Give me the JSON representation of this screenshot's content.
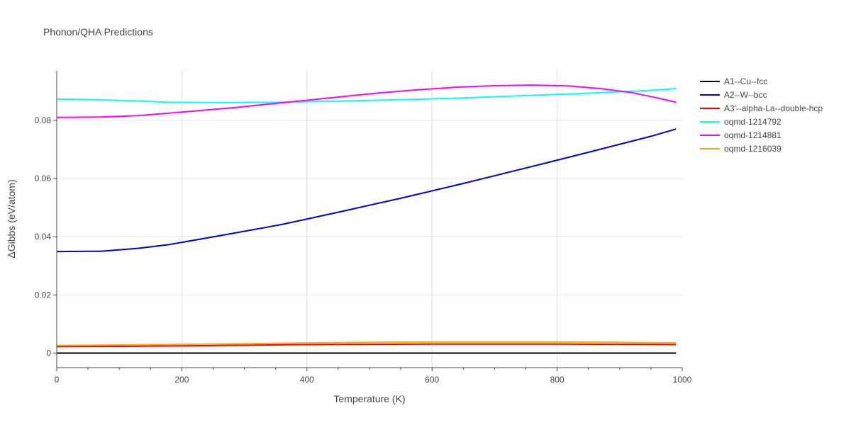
{
  "chart_data": {
    "type": "line",
    "title": "Phonon/QHA Predictions",
    "xlabel": "Temperature (K)",
    "ylabel": "ΔGibbs (eV/atom)",
    "xlim": [
      0,
      1000
    ],
    "ylim": [
      -0.005,
      0.097
    ],
    "xticks": [
      0,
      200,
      400,
      600,
      800,
      1000
    ],
    "xtick_labels": [
      "0",
      "200",
      "400",
      "600",
      "800",
      "1000"
    ],
    "yticks": [
      0,
      0.02,
      0.04,
      0.06,
      0.08
    ],
    "ytick_labels": [
      "0",
      "0.02",
      "0.04",
      "0.06",
      "0.08"
    ],
    "grid": true,
    "legend_position": "top-right-outside",
    "series": [
      {
        "name": "A1--Cu--fcc",
        "color": "#000000",
        "x": [
          0,
          100,
          200,
          300,
          400,
          500,
          600,
          700,
          800,
          900,
          990
        ],
        "y": [
          0,
          0,
          0,
          0,
          0,
          0,
          0,
          0,
          0,
          0,
          0
        ]
      },
      {
        "name": "A2--W--bcc",
        "color": "#0000dd",
        "x": [
          0,
          70,
          130,
          180,
          260,
          360,
          450,
          550,
          650,
          750,
          850,
          950,
          990
        ],
        "y": [
          0.0349,
          0.035,
          0.036,
          0.0373,
          0.0403,
          0.0442,
          0.0484,
          0.0532,
          0.0583,
          0.0636,
          0.069,
          0.0745,
          0.077
        ]
      },
      {
        "name": "A3'--alpha-La--double-hcp",
        "color": "#ee0000",
        "x": [
          0,
          100,
          200,
          300,
          400,
          500,
          600,
          700,
          800,
          900,
          990
        ],
        "y": [
          0.0022,
          0.0023,
          0.0025,
          0.0027,
          0.0029,
          0.003,
          0.0031,
          0.0031,
          0.0031,
          0.003,
          0.0029
        ]
      },
      {
        "name": "oqmd-1214792",
        "color": "#00ffff",
        "x": [
          0,
          60,
          120,
          180,
          260,
          350,
          450,
          550,
          650,
          750,
          850,
          950,
          990
        ],
        "y": [
          0.0873,
          0.0871,
          0.0867,
          0.0862,
          0.0861,
          0.0862,
          0.0866,
          0.0871,
          0.0877,
          0.0885,
          0.0893,
          0.0903,
          0.0909
        ]
      },
      {
        "name": "oqmd-1214881",
        "color": "#ff00ff",
        "x": [
          0,
          70,
          130,
          200,
          280,
          350,
          420,
          500,
          560,
          640,
          700,
          760,
          820,
          870,
          920,
          960,
          990
        ],
        "y": [
          0.081,
          0.0811,
          0.0816,
          0.0828,
          0.0843,
          0.0858,
          0.0873,
          0.0891,
          0.0902,
          0.0914,
          0.0919,
          0.0921,
          0.0918,
          0.0909,
          0.0895,
          0.0877,
          0.0862
        ]
      },
      {
        "name": "oqmd-1216039",
        "color": "#ffaa00",
        "x": [
          0,
          100,
          200,
          300,
          400,
          500,
          600,
          700,
          800,
          900,
          990
        ],
        "y": [
          0.0026,
          0.0028,
          0.003,
          0.0032,
          0.0035,
          0.0037,
          0.0038,
          0.0038,
          0.0038,
          0.0037,
          0.0035
        ]
      }
    ]
  }
}
